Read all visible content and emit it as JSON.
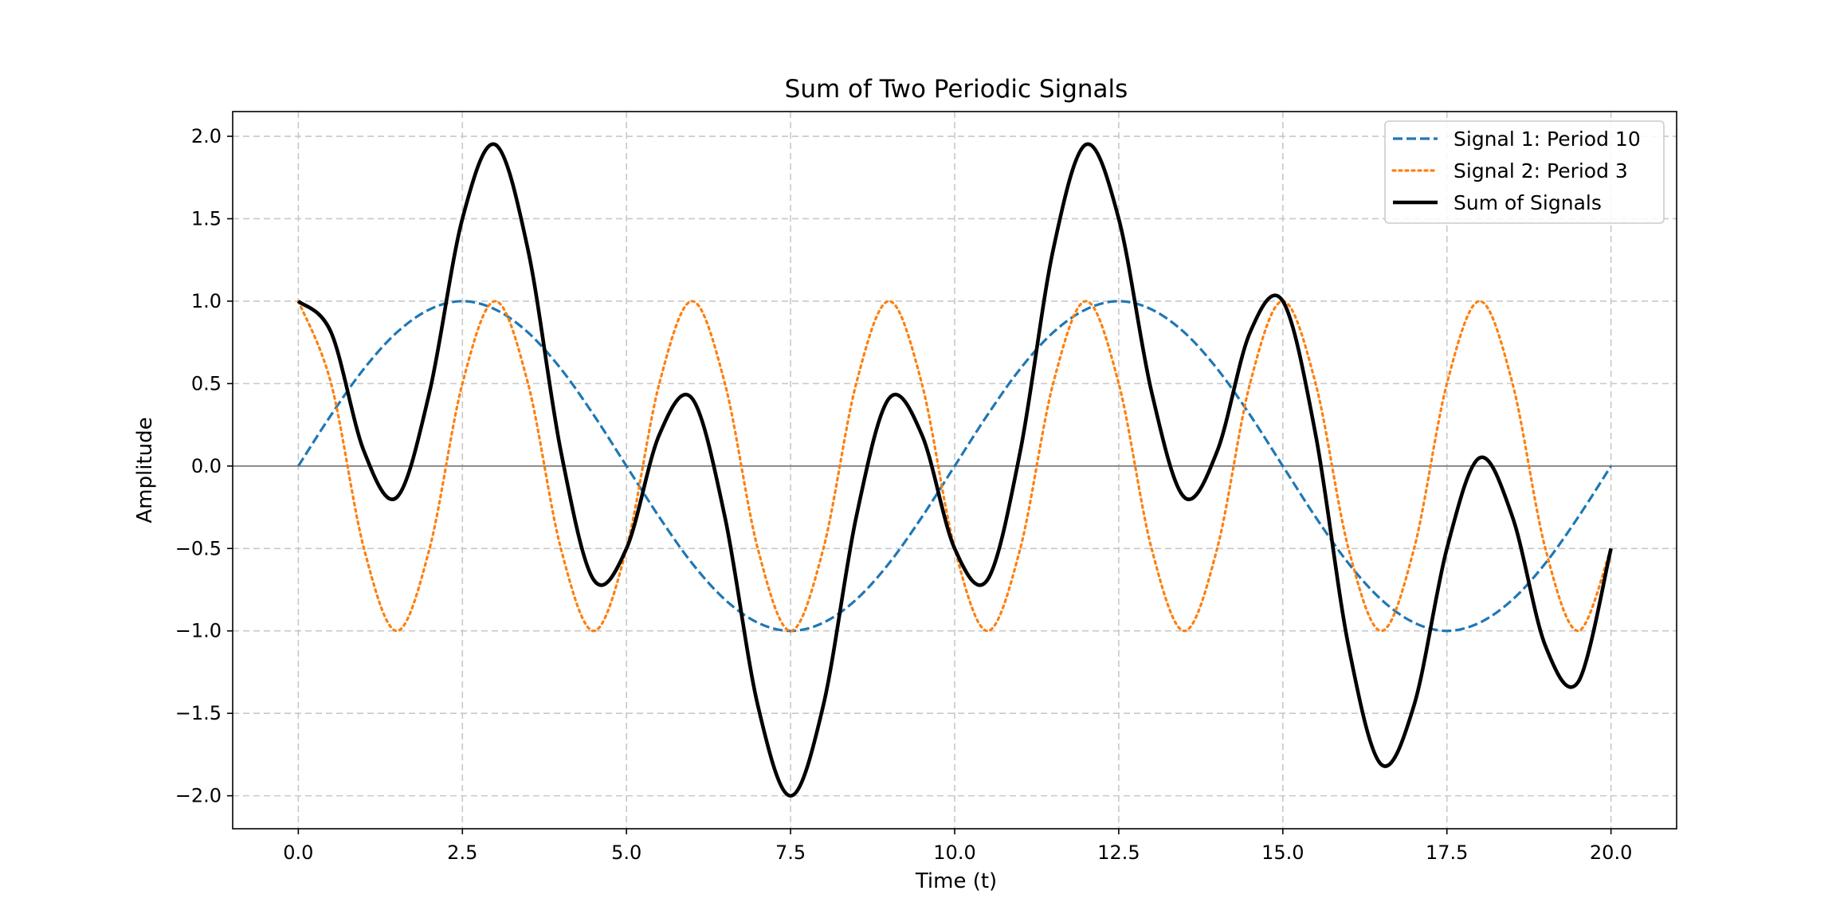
{
  "chart_data": {
    "type": "line",
    "title": "Sum of Two Periodic Signals",
    "xlabel": "Time (t)",
    "ylabel": "Amplitude",
    "xlim": [
      -1.0,
      21.0
    ],
    "ylim": [
      -2.2,
      2.15
    ],
    "x_ticks": [
      0.0,
      2.5,
      5.0,
      7.5,
      10.0,
      12.5,
      15.0,
      17.5,
      20.0
    ],
    "x_tick_labels": [
      "0.0",
      "2.5",
      "5.0",
      "7.5",
      "10.0",
      "12.5",
      "15.0",
      "17.5",
      "20.0"
    ],
    "y_ticks": [
      -2.0,
      -1.5,
      -1.0,
      -0.5,
      0.0,
      0.5,
      1.0,
      1.5,
      2.0
    ],
    "y_tick_labels": [
      "−2.0",
      "−1.5",
      "−1.0",
      "−0.5",
      "0.0",
      "0.5",
      "1.0",
      "1.5",
      "2.0"
    ],
    "grid": true,
    "zero_line": true,
    "legend_position": "top-right",
    "x": [
      0.0,
      0.5,
      1.0,
      1.5,
      2.0,
      2.5,
      3.0,
      3.5,
      4.0,
      4.5,
      5.0,
      5.5,
      6.0,
      6.5,
      7.0,
      7.5,
      8.0,
      8.5,
      9.0,
      9.5,
      10.0,
      10.5,
      11.0,
      11.5,
      12.0,
      12.5,
      13.0,
      13.5,
      14.0,
      14.5,
      15.0,
      15.5,
      16.0,
      16.5,
      17.0,
      17.5,
      18.0,
      18.5,
      19.0,
      19.5,
      20.0
    ],
    "series": [
      {
        "name": "Signal 1: Period 10",
        "color": "#1f77b4",
        "style": "dashed",
        "values": [
          0.0,
          0.31,
          0.59,
          0.81,
          0.95,
          1.0,
          0.95,
          0.81,
          0.59,
          0.31,
          0.0,
          -0.31,
          -0.59,
          -0.81,
          -0.95,
          -1.0,
          -0.95,
          -0.81,
          -0.59,
          -0.31,
          0.0,
          0.31,
          0.59,
          0.81,
          0.95,
          1.0,
          0.95,
          0.81,
          0.59,
          0.31,
          0.0,
          -0.31,
          -0.59,
          -0.81,
          -0.95,
          -1.0,
          -0.95,
          -0.81,
          -0.59,
          -0.31,
          0.0
        ]
      },
      {
        "name": "Signal 2: Period 3",
        "color": "#ff7f0e",
        "style": "dotted",
        "values": [
          1.0,
          0.5,
          -0.5,
          -1.0,
          -0.5,
          0.5,
          1.0,
          0.5,
          -0.5,
          -1.0,
          -0.5,
          0.5,
          1.0,
          0.5,
          -0.5,
          -1.0,
          -0.5,
          0.5,
          1.0,
          0.5,
          -0.5,
          -1.0,
          -0.5,
          0.5,
          1.0,
          0.5,
          -0.5,
          -1.0,
          -0.5,
          0.5,
          1.0,
          0.5,
          -0.5,
          -1.0,
          -0.5,
          0.5,
          1.0,
          0.5,
          -0.5,
          -1.0,
          -0.5
        ]
      },
      {
        "name": "Sum of Signals",
        "color": "#000000",
        "style": "solid",
        "values": [
          1.0,
          0.81,
          0.09,
          -0.19,
          0.45,
          1.5,
          1.95,
          1.31,
          0.09,
          -0.69,
          -0.5,
          0.19,
          0.41,
          -0.31,
          -1.45,
          -2.0,
          -1.45,
          -0.31,
          0.41,
          0.19,
          -0.5,
          -0.69,
          0.09,
          1.31,
          1.95,
          1.5,
          0.45,
          -0.19,
          0.09,
          0.81,
          1.0,
          0.19,
          -1.09,
          -1.81,
          -1.45,
          -0.5,
          0.05,
          -0.31,
          -1.09,
          -1.31,
          -0.5
        ]
      }
    ]
  }
}
